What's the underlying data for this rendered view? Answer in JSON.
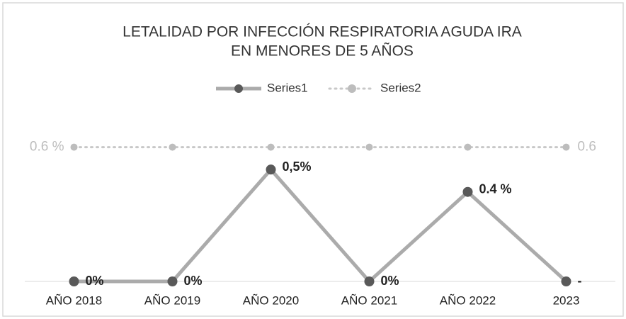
{
  "chart_data": {
    "type": "line",
    "title": [
      "LETALIDAD POR INFECCIÓN RESPIRATORIA AGUDA IRA",
      "EN MENORES DE 5 AÑOS"
    ],
    "categories": [
      "AÑO 2018",
      "AÑO 2019",
      "AÑO 2020",
      "AÑO 2021",
      "AÑO 2022",
      "2023"
    ],
    "series": [
      {
        "name": "Series1",
        "color": "#ababab",
        "marker_color": "#595959",
        "line_style": "solid",
        "values": [
          0,
          0,
          0.5,
          0,
          0.4,
          0
        ],
        "value_labels": [
          "0%",
          "0%",
          "0,5%",
          "0%",
          "0.4 %",
          "-"
        ],
        "label_color": "#222222"
      },
      {
        "name": "Series2",
        "color": "#c8c8c8",
        "marker_color": "#bdbdbd",
        "line_style": "dotted",
        "values": [
          0.6,
          0.6,
          0.6,
          0.6,
          0.6,
          0.6
        ],
        "value_labels": [
          "0.6 %",
          null,
          null,
          null,
          null,
          "0.6"
        ],
        "label_color": "#bdbdbd"
      }
    ],
    "ylim": [
      0,
      0.7
    ],
    "legend": "top"
  }
}
